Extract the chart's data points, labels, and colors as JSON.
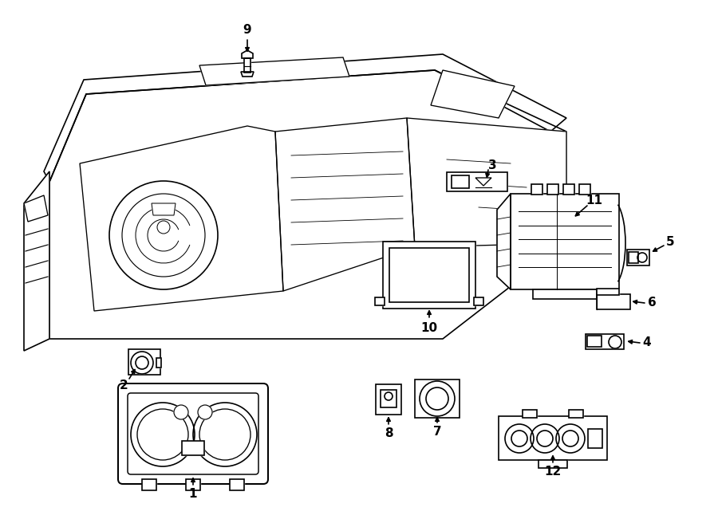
{
  "background_color": "#ffffff",
  "line_color": "#000000",
  "line_width": 1.2,
  "fig_width": 9.0,
  "fig_height": 6.61,
  "dpi": 100
}
